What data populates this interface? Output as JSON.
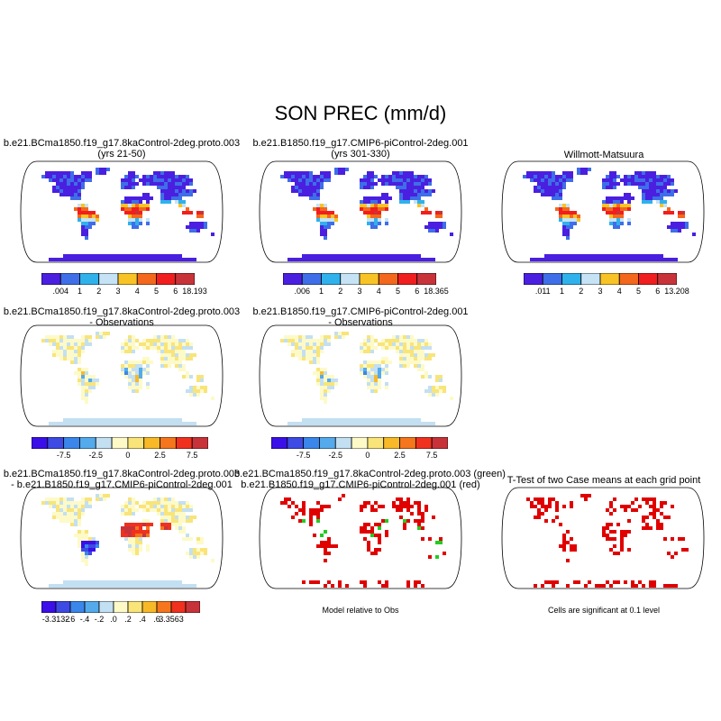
{
  "figure": {
    "title": "SON PREC (mm/d)"
  },
  "panels": [
    {
      "id": "p1",
      "title_lines": [
        "b.e21.BCma1850.f19_g17.8kaControl-2deg.proto.003",
        "(yrs 21-50)"
      ],
      "kind": "abs"
    },
    {
      "id": "p2",
      "title_lines": [
        "b.e21.B1850.f19_g17.CMIP6-piControl-2deg.001",
        "(yrs 301-330)"
      ],
      "kind": "abs"
    },
    {
      "id": "p3",
      "title_lines": [
        "Willmott-Matsuura"
      ],
      "kind": "abs"
    },
    {
      "id": "p4",
      "title_lines": [
        "b.e21.BCma1850.f19_g17.8kaControl-2deg.proto.003",
        "- Observations"
      ],
      "kind": "diff"
    },
    {
      "id": "p5",
      "title_lines": [
        "b.e21.B1850.f19_g17.CMIP6-piControl-2deg.001",
        "- Observations"
      ],
      "kind": "diff"
    },
    {
      "id": "p7",
      "title_lines": [
        "b.e21.BCma1850.f19_g17.8kaControl-2deg.proto.003",
        "- b.e21.B1850.f19_g17.CMIP6-piControl-2deg.001"
      ],
      "kind": "diff2"
    },
    {
      "id": "p8",
      "title_lines": [
        "b.e21.BCma1850.f19_g17.8kaControl-2deg.proto.003 (green)",
        "b.e21.B1850.f19_g17.CMIP6-piControl-2deg.001 (red)"
      ],
      "kind": "rel"
    },
    {
      "id": "p9",
      "title_lines": [
        "T-Test of two Case means at each grid point"
      ],
      "kind": "ttest"
    }
  ],
  "colorbars": {
    "abs1": {
      "colors": [
        "#4a1fe0",
        "#3e6ee8",
        "#2fb1ec",
        "#c5e3f5",
        "#f8c325",
        "#f3681c",
        "#f01e1e",
        "#c8333a"
      ],
      "labels": [
        ".004",
        "1",
        "2",
        "3",
        "4",
        "5",
        "6",
        "18.193"
      ]
    },
    "abs2": {
      "colors": [
        "#4a1fe0",
        "#3e6ee8",
        "#2fb1ec",
        "#c5e3f5",
        "#f8c325",
        "#f3681c",
        "#f01e1e",
        "#c8333a"
      ],
      "labels": [
        ".006",
        "1",
        "2",
        "3",
        "4",
        "5",
        "6",
        "18.365"
      ]
    },
    "abs3": {
      "colors": [
        "#4a1fe0",
        "#3e6ee8",
        "#2fb1ec",
        "#c5e3f5",
        "#f8c325",
        "#f3681c",
        "#f01e1e",
        "#c8333a"
      ],
      "labels": [
        ".011",
        "1",
        "2",
        "3",
        "4",
        "5",
        "6",
        "13.208"
      ]
    },
    "diff": {
      "colors": [
        "#3a0fe8",
        "#3d4ae3",
        "#3b86ea",
        "#54aaeb",
        "#c3dff2",
        "#fdfac8",
        "#f8e479",
        "#f8b929",
        "#f5761c",
        "#f0311e",
        "#c8333a"
      ],
      "labels": [
        "-7.5",
        "-2.5",
        "0",
        "2.5",
        "7.5"
      ]
    },
    "diff2": {
      "colors": [
        "#3a0fe8",
        "#3d4ae3",
        "#3b86ea",
        "#54aaeb",
        "#c3dff2",
        "#fdfac8",
        "#f8e479",
        "#f8b929",
        "#f5761c",
        "#f0311e",
        "#c8333a"
      ],
      "labels": [
        "-3.3132",
        "-.6",
        "-.4",
        "-.2",
        ".0",
        ".2",
        ".4",
        ".6",
        "3.3563"
      ]
    }
  },
  "notes": {
    "relative": "Model relative to Obs",
    "ttest": "Cells are significant at 0.1 level"
  },
  "legend_colors": {
    "green": "#22cc22",
    "red": "#e00000",
    "land_outline": "#000000"
  }
}
